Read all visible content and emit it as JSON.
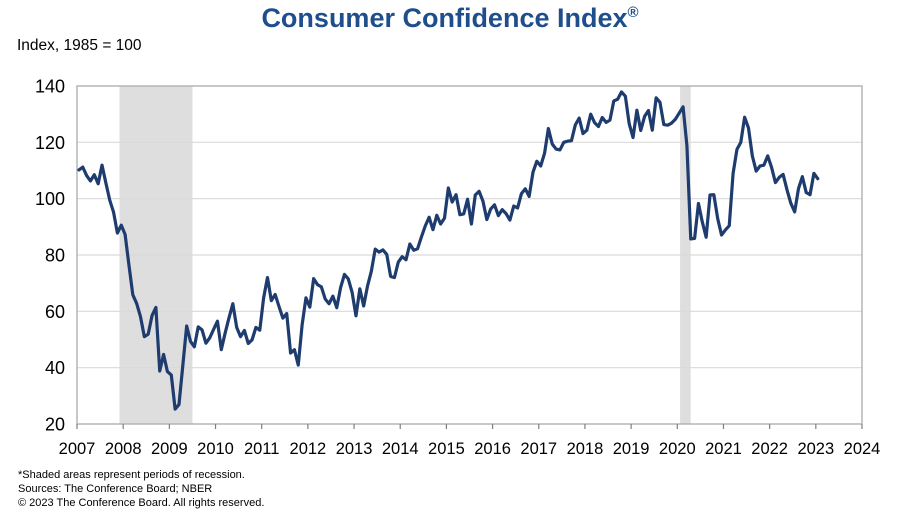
{
  "title": {
    "text": "Consumer Confidence Index",
    "registered_mark": "®"
  },
  "subtitle": "Index, 1985 = 100",
  "footer": {
    "note": "*Shaded areas represent periods of recession.",
    "sources": "Sources: The Conference Board; NBER",
    "copyright": "© 2023 The Conference Board. All rights reserved."
  },
  "colors": {
    "title_blue": "#1f4e8c",
    "line_navy": "#1e3c6e",
    "gridline": "#d9d9d9",
    "plot_border": "#ababab",
    "recession_band": "#dedede",
    "tick": "#7f7f7f",
    "label": "#000000"
  },
  "chart_data": {
    "type": "line",
    "title": "Consumer Confidence Index®",
    "ylabel": "Index, 1985 = 100",
    "xlim": [
      2007,
      2024
    ],
    "ylim": [
      20,
      140
    ],
    "yticks": [
      20,
      40,
      60,
      80,
      100,
      120,
      140
    ],
    "xticks": [
      2007,
      2008,
      2009,
      2010,
      2011,
      2012,
      2013,
      2014,
      2015,
      2016,
      2017,
      2018,
      2019,
      2020,
      2021,
      2022,
      2023,
      2024
    ],
    "grid": "horizontal",
    "legend": "none",
    "recession_bands": [
      {
        "from_year": 2007.92,
        "to_year": 2009.5
      },
      {
        "from_year": 2020.06,
        "to_year": 2020.29
      }
    ],
    "series": [
      {
        "name": "Consumer Confidence Index",
        "start": "2007-01",
        "frequency": "monthly",
        "values": [
          110.2,
          111.2,
          108.2,
          106.3,
          108.5,
          105.3,
          111.9,
          105.6,
          99.5,
          95.2,
          87.8,
          90.6,
          87.3,
          76.4,
          65.9,
          62.8,
          58.1,
          51.0,
          51.9,
          58.5,
          61.4,
          38.8,
          44.7,
          38.6,
          37.4,
          25.3,
          26.9,
          40.8,
          54.8,
          49.3,
          47.4,
          54.5,
          53.4,
          48.7,
          50.6,
          53.6,
          56.5,
          46.4,
          52.3,
          57.7,
          62.7,
          54.3,
          51.0,
          53.2,
          48.6,
          49.9,
          54.3,
          53.3,
          64.8,
          72.0,
          63.8,
          66.0,
          61.7,
          57.6,
          59.2,
          45.2,
          46.4,
          40.9,
          55.2,
          64.8,
          61.5,
          71.6,
          69.5,
          68.7,
          64.4,
          62.7,
          65.4,
          61.3,
          68.4,
          73.1,
          71.5,
          66.7,
          58.4,
          68.0,
          61.9,
          69.0,
          74.3,
          82.1,
          81.0,
          81.8,
          80.2,
          72.4,
          72.0,
          77.5,
          79.4,
          78.3,
          83.9,
          81.7,
          82.2,
          86.4,
          90.3,
          93.4,
          89.0,
          94.1,
          91.0,
          93.1,
          103.8,
          98.8,
          101.4,
          94.3,
          94.6,
          99.8,
          91.0,
          101.3,
          102.6,
          99.1,
          92.6,
          96.3,
          97.8,
          94.0,
          96.1,
          94.7,
          92.4,
          97.4,
          96.7,
          101.8,
          103.5,
          100.8,
          109.4,
          113.3,
          111.6,
          116.1,
          124.9,
          119.4,
          117.6,
          117.3,
          120.0,
          120.4,
          120.6,
          126.2,
          128.6,
          123.1,
          124.3,
          130.0,
          127.0,
          125.6,
          128.8,
          127.1,
          127.9,
          134.7,
          135.3,
          137.9,
          136.4,
          126.6,
          121.7,
          131.4,
          124.2,
          129.2,
          131.3,
          124.3,
          135.8,
          134.2,
          126.3,
          126.1,
          126.8,
          128.2,
          130.4,
          132.6,
          118.8,
          85.7,
          85.9,
          98.3,
          91.7,
          86.3,
          101.3,
          101.4,
          92.9,
          87.1,
          88.9,
          90.4,
          109.0,
          117.5,
          120.0,
          128.9,
          125.1,
          115.2,
          109.8,
          111.6,
          111.9,
          115.2,
          111.1,
          105.7,
          107.6,
          108.6,
          103.2,
          98.4,
          95.3,
          103.6,
          107.8,
          102.2,
          101.4,
          109.0,
          107.1
        ]
      }
    ]
  }
}
